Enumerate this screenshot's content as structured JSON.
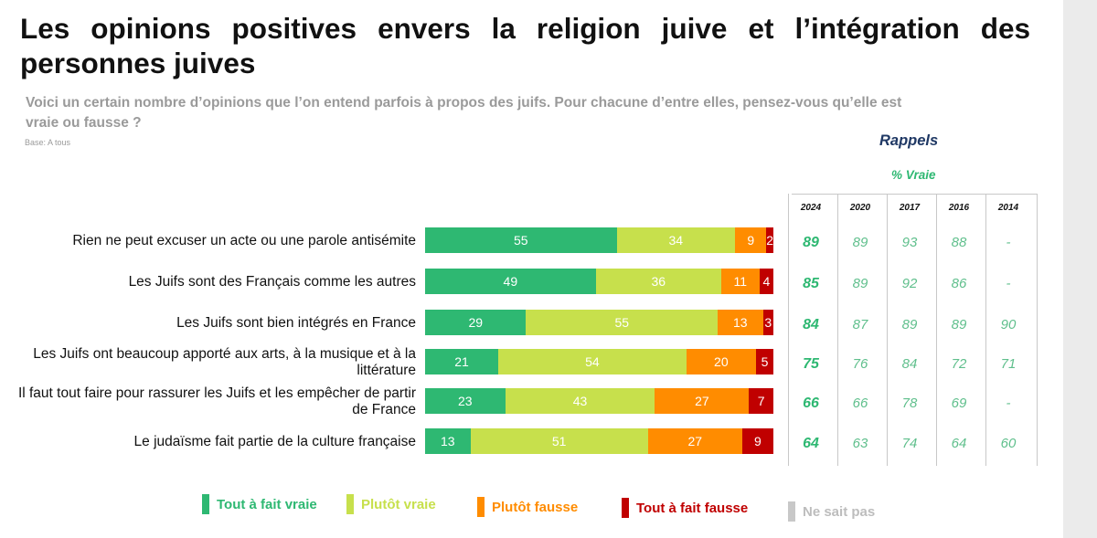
{
  "title": "Les opinions positives envers la religion juive et l’intégration des personnes juives",
  "subtitle": "Voici un certain nombre d’opinions que l’on entend parfois à propos des juifs. Pour chacune d’entre elles, pensez-vous qu’elle est vraie ou fausse ?",
  "base": "Base: A tous",
  "rappels": {
    "heading": "Rappels",
    "sub": "% Vraie",
    "years": [
      "2024",
      "2020",
      "2017",
      "2016",
      "2014"
    ]
  },
  "colors": {
    "tout_fait_vraie": "#2eb872",
    "plutot_vraie": "#c7e04c",
    "plutot_fausse": "#ff8c00",
    "tout_fait_fausse": "#c00000",
    "ne_sait_pas": "#c8c8c8"
  },
  "chart_data": {
    "type": "bar",
    "orientation": "horizontal-stacked",
    "categories": [
      "Rien ne peut excuser un acte ou une parole antisémite",
      "Les Juifs sont des Français comme les autres",
      "Les Juifs sont bien intégrés en France",
      "Les Juifs ont beaucoup apporté aux arts, à la musique et à la littérature",
      "Il faut tout faire pour rassurer les Juifs et les empêcher de partir de France",
      "Le judaïsme fait partie de la culture française"
    ],
    "series": [
      {
        "name": "Tout à fait vraie",
        "values": [
          55,
          49,
          29,
          21,
          23,
          13
        ]
      },
      {
        "name": "Plutôt vraie",
        "values": [
          34,
          36,
          55,
          54,
          43,
          51
        ]
      },
      {
        "name": "Plutôt fausse",
        "values": [
          9,
          11,
          13,
          20,
          27,
          27
        ]
      },
      {
        "name": "Tout à fait fausse",
        "values": [
          2,
          4,
          3,
          5,
          7,
          9
        ]
      },
      {
        "name": "Ne sait pas",
        "values": [
          0,
          0,
          0,
          0,
          0,
          0
        ]
      }
    ],
    "rappels_table": [
      [
        "89",
        "89",
        "93",
        "88",
        "-"
      ],
      [
        "85",
        "89",
        "92",
        "86",
        "-"
      ],
      [
        "84",
        "87",
        "89",
        "89",
        "90"
      ],
      [
        "75",
        "76",
        "84",
        "72",
        "71"
      ],
      [
        "66",
        "66",
        "78",
        "69",
        "-"
      ],
      [
        "64",
        "63",
        "74",
        "64",
        "60"
      ]
    ]
  }
}
